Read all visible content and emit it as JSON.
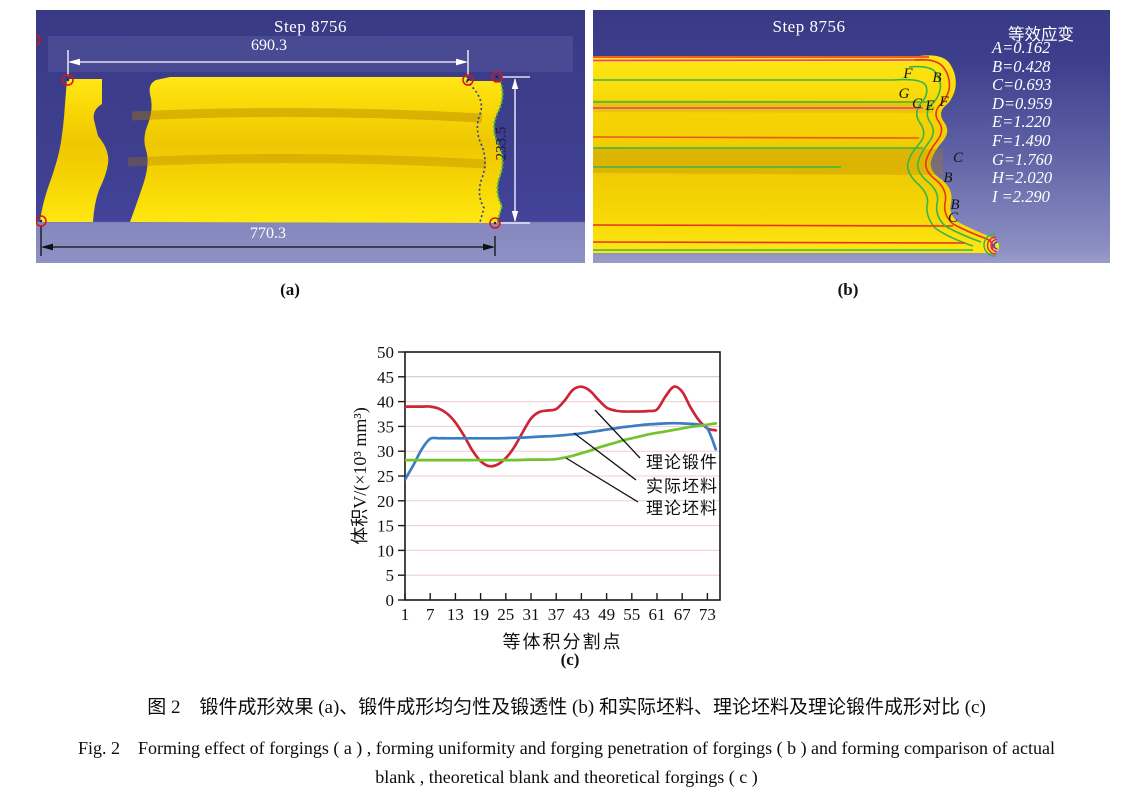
{
  "panel_a": {
    "step_label": "Step 8756",
    "dim_width_top": "690.3",
    "dim_width_bottom": "770.3",
    "dim_height_right": "233.5",
    "sublabel": "(a)"
  },
  "panel_b": {
    "step_label": "Step 8756",
    "legend_title": "等效应变",
    "legend_entries": [
      "A=0.162",
      "B=0.428",
      "C=0.693",
      "D=0.959",
      "E=1.220",
      "F=1.490",
      "G=1.760",
      "H=2.020",
      "I =2.290"
    ],
    "contour_labels": [
      "F",
      "B",
      "G",
      "C",
      "E",
      "F",
      "C",
      "B",
      "B",
      "C"
    ],
    "sublabel": "(b)"
  },
  "panel_c": {
    "sublabel": "(c)"
  },
  "caption": {
    "zh": "图 2　锻件成形效果 (a)、锻件成形均匀性及锻透性 (b) 和实际坯料、理论坯料及理论锻件成形对比 (c)",
    "en_line1": "Fig. 2　Forming effect of forgings ( a ) , forming uniformity and forging penetration of forgings ( b ) and forming comparison of actual",
    "en_line2": "blank , theoretical blank and theoretical forgings ( c )"
  },
  "chart_data": {
    "type": "line",
    "title": "",
    "xlabel": "等体积分割点",
    "ylabel": "体积V/(×10³ mm³)",
    "xlim": [
      1,
      76
    ],
    "ylim": [
      0,
      50
    ],
    "x_ticks": [
      1,
      7,
      13,
      19,
      25,
      31,
      37,
      43,
      49,
      55,
      61,
      67,
      73
    ],
    "y_ticks": [
      0,
      5,
      10,
      15,
      20,
      25,
      30,
      35,
      40,
      45,
      50
    ],
    "grid": "horizontal",
    "legend_position": "inline-annotations",
    "legend_labels": [
      "理论锻件",
      "实际坯料",
      "理论坯料"
    ],
    "series": [
      {
        "name": "理论锻件",
        "color": "#cf2435",
        "x": [
          1,
          3,
          5,
          7,
          9,
          11,
          13,
          15,
          17,
          19,
          21,
          23,
          25,
          27,
          29,
          31,
          33,
          35,
          37,
          39,
          41,
          43,
          45,
          47,
          49,
          51,
          53,
          55,
          57,
          59,
          61,
          63,
          65,
          67,
          69,
          71,
          73,
          75
        ],
        "y": [
          39,
          39,
          39,
          39,
          38.6,
          37.6,
          35.8,
          33.2,
          30.2,
          28,
          27,
          27.3,
          28.6,
          30.8,
          33.8,
          36.6,
          37.9,
          38.2,
          38.5,
          40.2,
          42.4,
          43,
          42.2,
          40.4,
          38.8,
          38.2,
          38,
          38,
          38,
          38.1,
          38.4,
          41,
          43,
          42,
          38.8,
          36.2,
          34.6,
          34.2
        ]
      },
      {
        "name": "实际坯料",
        "color": "#3b7cc4",
        "x": [
          1,
          3,
          5,
          7,
          9,
          11,
          13,
          15,
          17,
          19,
          21,
          23,
          25,
          27,
          29,
          31,
          33,
          35,
          37,
          39,
          41,
          43,
          45,
          47,
          49,
          51,
          53,
          55,
          57,
          59,
          61,
          63,
          65,
          67,
          69,
          71,
          73,
          75
        ],
        "y": [
          24.3,
          27.2,
          30.4,
          32.5,
          32.6,
          32.6,
          32.6,
          32.6,
          32.6,
          32.6,
          32.6,
          32.6,
          32.65,
          32.7,
          32.75,
          32.85,
          32.95,
          33,
          33.1,
          33.25,
          33.4,
          33.6,
          33.85,
          34.1,
          34.35,
          34.6,
          34.85,
          35.05,
          35.25,
          35.4,
          35.5,
          35.6,
          35.65,
          35.6,
          35.5,
          35.35,
          34.6,
          30.4
        ]
      },
      {
        "name": "理论坯料",
        "color": "#72c32e",
        "x": [
          1,
          3,
          5,
          7,
          9,
          11,
          13,
          15,
          17,
          19,
          21,
          23,
          25,
          27,
          29,
          31,
          33,
          35,
          37,
          39,
          41,
          43,
          45,
          47,
          49,
          51,
          53,
          55,
          57,
          59,
          61,
          63,
          65,
          67,
          69,
          71,
          73,
          75
        ],
        "y": [
          28.2,
          28.2,
          28.2,
          28.2,
          28.2,
          28.2,
          28.2,
          28.2,
          28.2,
          28.2,
          28.2,
          28.2,
          28.2,
          28.2,
          28.25,
          28.3,
          28.3,
          28.3,
          28.4,
          28.7,
          29.1,
          29.6,
          30.1,
          30.7,
          31.2,
          31.7,
          32.2,
          32.6,
          33,
          33.4,
          33.7,
          34,
          34.3,
          34.6,
          34.9,
          35.1,
          35.35,
          35.6
        ]
      }
    ]
  },
  "colors": {
    "render_bg_dark": "#3c3d8c",
    "render_bg_light": "#8a8dc2",
    "body_yellow": "#f6d502",
    "contour_red": "#e8321e",
    "contour_green": "#38b54a",
    "contour_magenta": "#e8359f",
    "dim_marker_red": "#dd1111",
    "grid_pink": "#eecdd2"
  }
}
